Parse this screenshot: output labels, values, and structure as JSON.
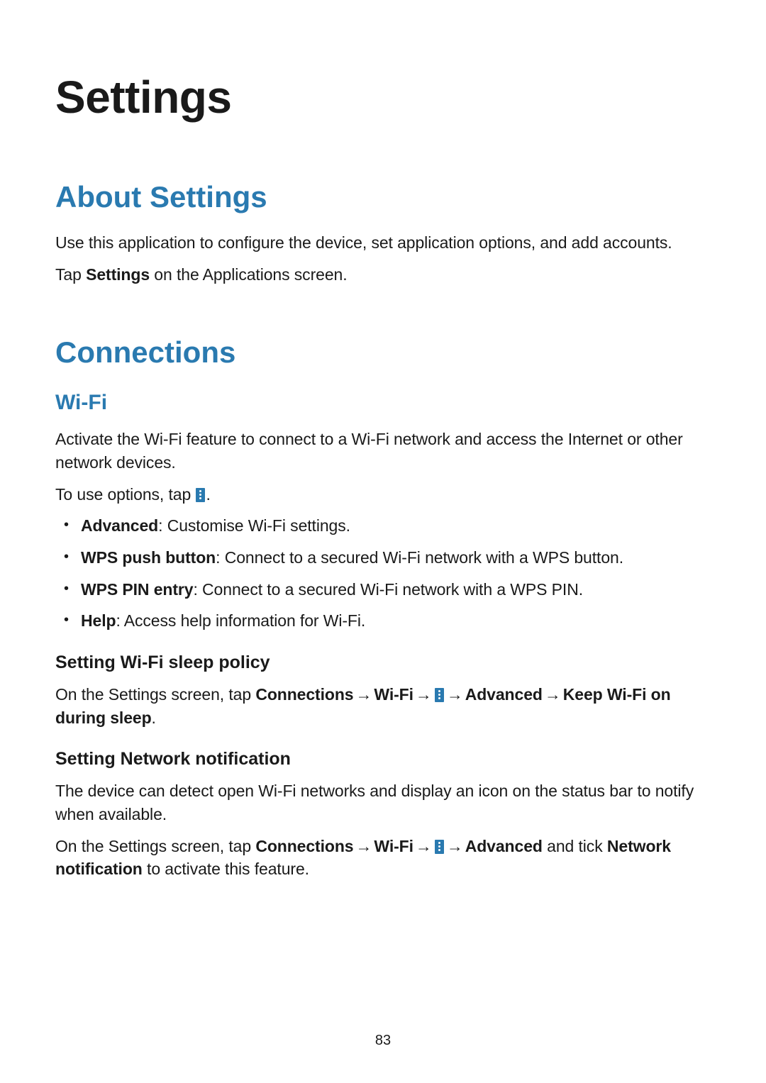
{
  "colors": {
    "heading_accent": "#2a7ab0",
    "body_text": "#1a1a1a",
    "background": "#ffffff",
    "icon_bg": "#2a7ab0",
    "icon_dots": "#ffffff"
  },
  "typography": {
    "h1_fontsize": 64,
    "h2_fontsize": 42,
    "h3_fontsize": 30,
    "h4_fontsize": 25,
    "body_fontsize": 23,
    "page_num_fontsize": 20
  },
  "title": "Settings",
  "sections": {
    "about": {
      "heading": "About Settings",
      "para1": "Use this application to configure the device, set application options, and add accounts.",
      "para2_pre": "Tap ",
      "para2_bold": "Settings",
      "para2_post": " on the Applications screen."
    },
    "connections": {
      "heading": "Connections",
      "wifi": {
        "heading": "Wi-Fi",
        "intro": "Activate the Wi-Fi feature to connect to a Wi-Fi network and access the Internet or other network devices.",
        "options_pre": "To use options, tap ",
        "options_post": ".",
        "bullets": [
          {
            "label": "Advanced",
            "desc": ": Customise Wi-Fi settings."
          },
          {
            "label": "WPS push button",
            "desc": ": Connect to a secured Wi-Fi network with a WPS button."
          },
          {
            "label": "WPS PIN entry",
            "desc": ": Connect to a secured Wi-Fi network with a WPS PIN."
          },
          {
            "label": "Help",
            "desc": ": Access help information for Wi-Fi."
          }
        ],
        "sleep_policy": {
          "heading": "Setting Wi-Fi sleep policy",
          "pre": "On the Settings screen, tap ",
          "b1": "Connections",
          "arrow": " → ",
          "b2": "Wi-Fi",
          "b3": "Advanced",
          "b4": "Keep Wi-Fi on during sleep",
          "end": "."
        },
        "network_notif": {
          "heading": "Setting Network notification",
          "para1": "The device can detect open Wi-Fi networks and display an icon on the status bar to notify when available.",
          "pre": "On the Settings screen, tap ",
          "b1": "Connections",
          "arrow": " → ",
          "b2": "Wi-Fi",
          "b3": "Advanced",
          "mid": " and tick ",
          "b4": "Network notification",
          "post": " to activate this feature."
        }
      }
    }
  },
  "page_number": "83"
}
